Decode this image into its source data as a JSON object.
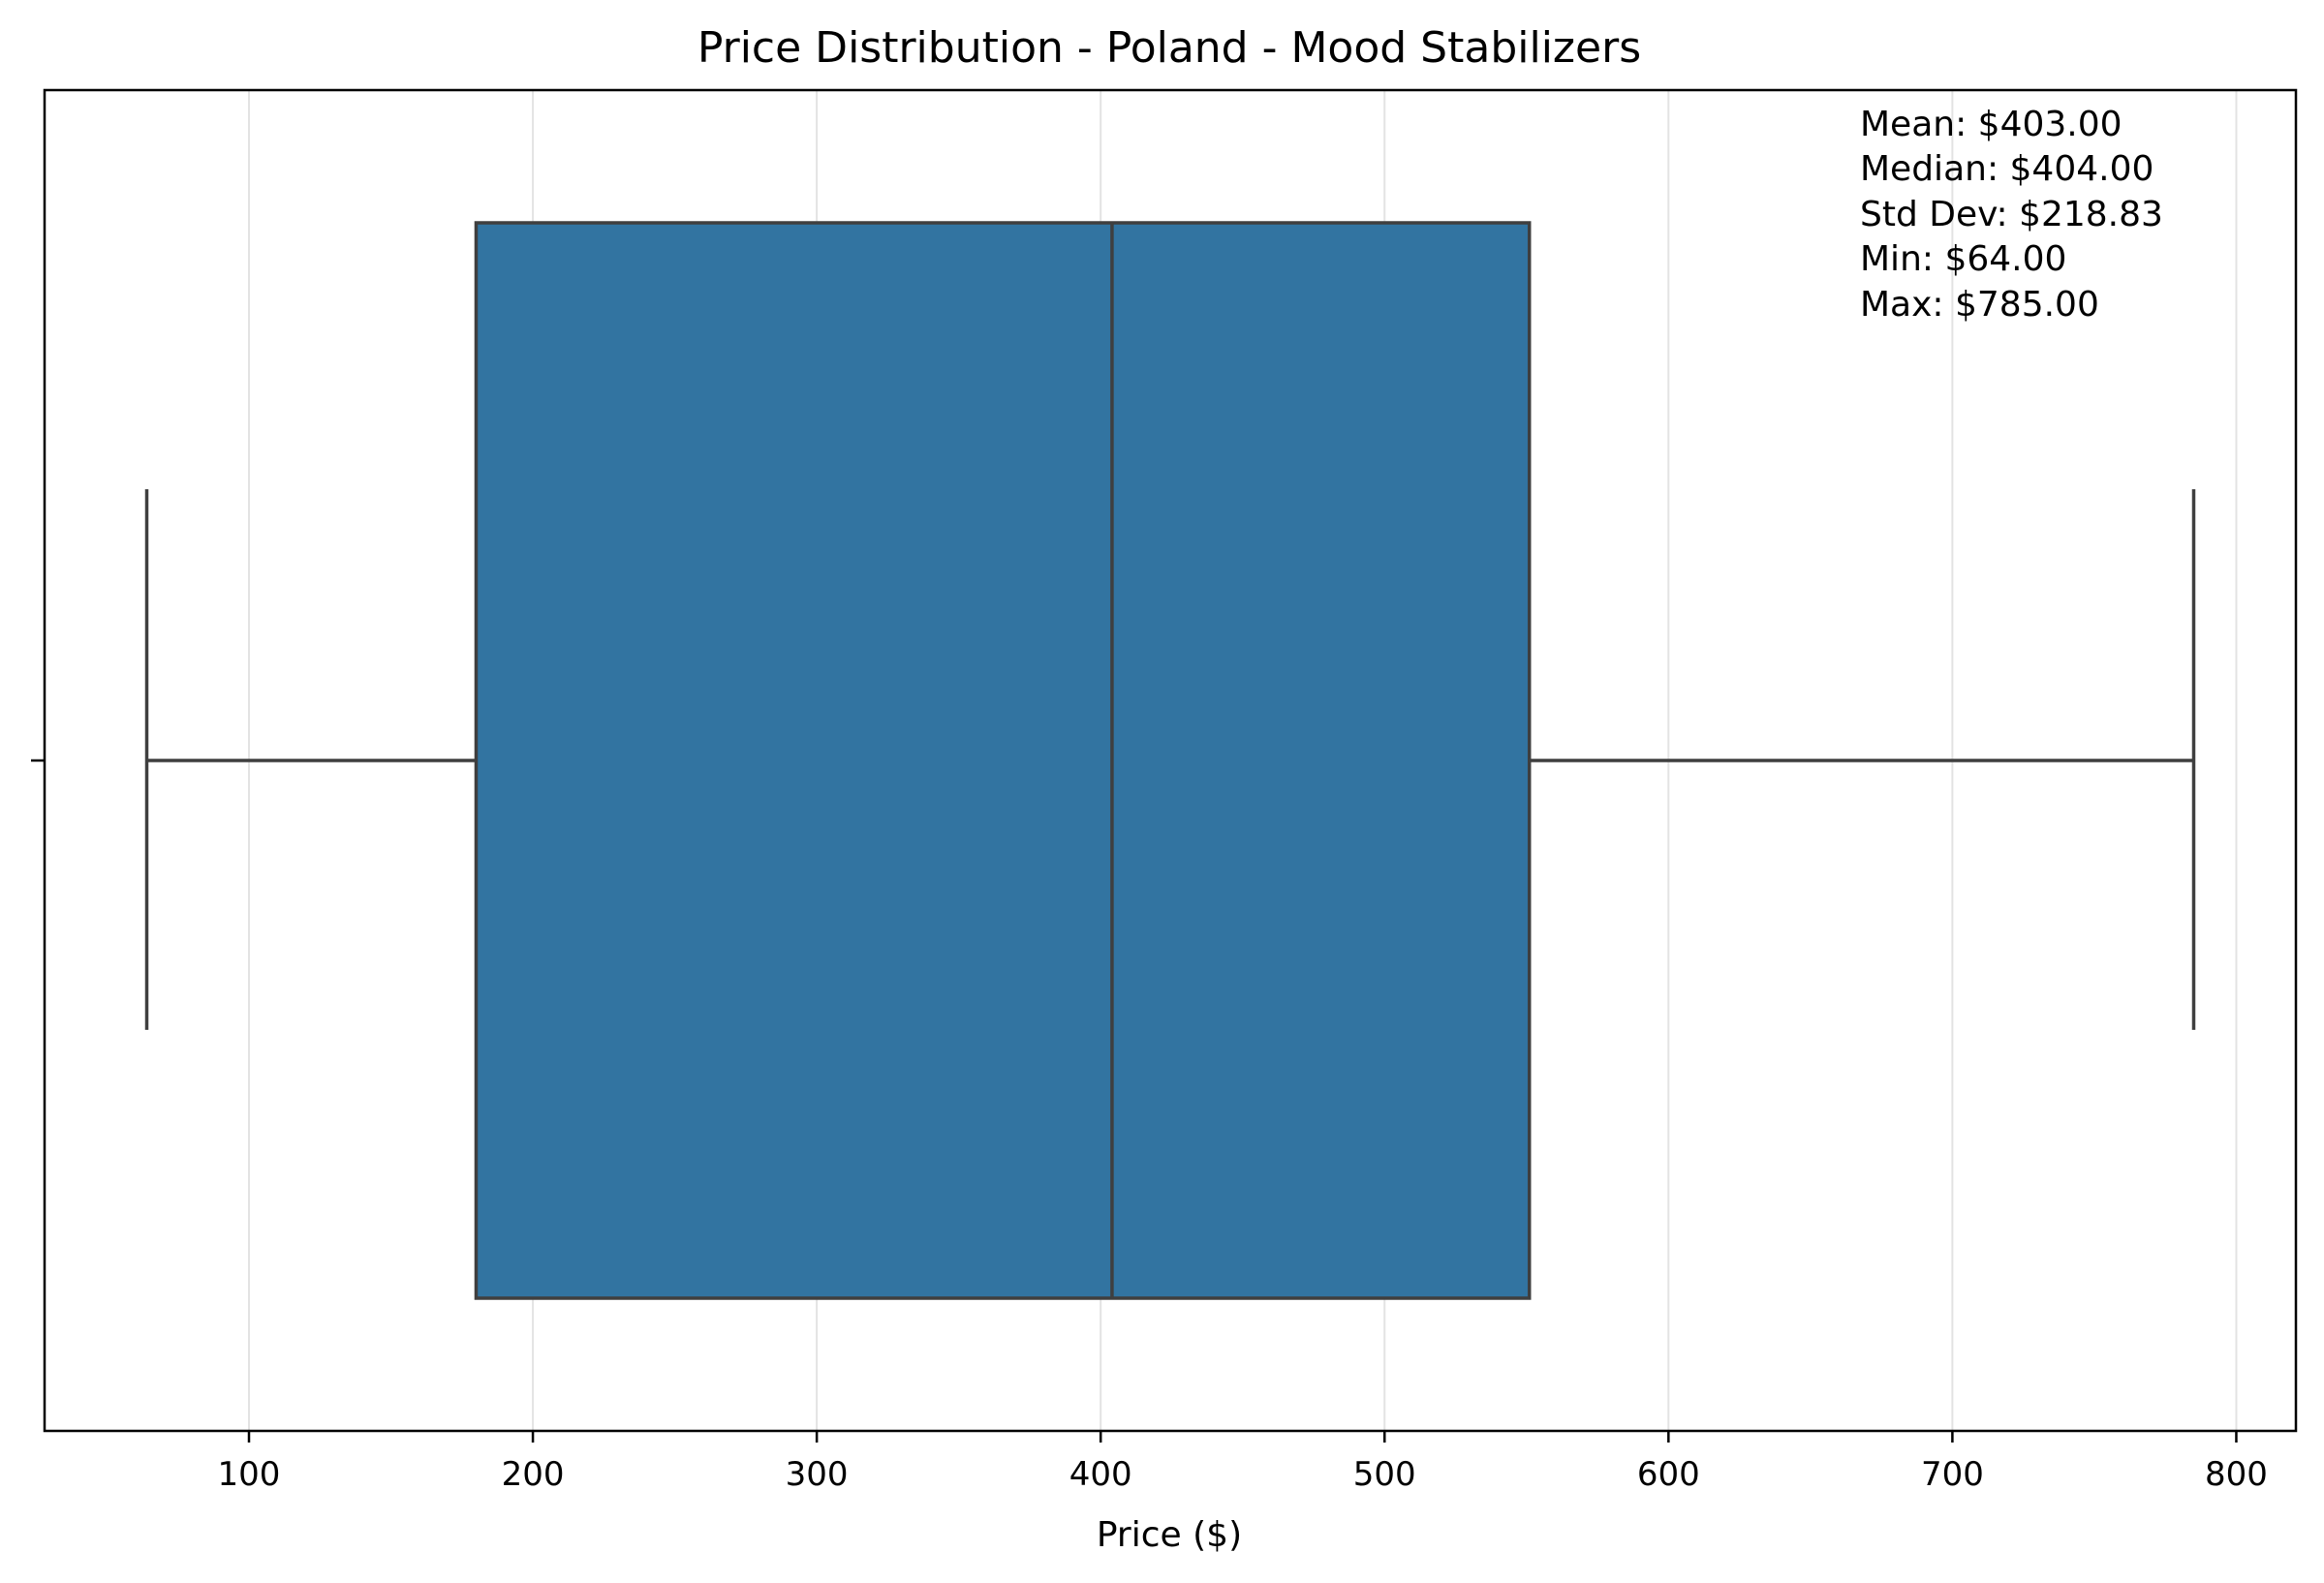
{
  "chart_data": {
    "type": "box",
    "title": "Price Distribution - Poland - Mood Stabilizers",
    "xlabel": "Price ($)",
    "ylabel": "",
    "orientation": "horizontal",
    "xlim": [
      28,
      821
    ],
    "xticks": [
      100,
      200,
      300,
      400,
      500,
      600,
      700,
      800
    ],
    "grid": "vertical-only",
    "box": {
      "whisker_low": 64,
      "q1": 180,
      "median": 404,
      "q3": 551,
      "whisker_high": 785
    },
    "colors": {
      "box_fill": "#3274a1",
      "line": "#3f3f3f",
      "grid": "#e3e3e3",
      "axis": "#000000"
    },
    "stats_box": {
      "placement": "top-right",
      "lines": [
        "Mean: $403.00",
        "Median: $404.00",
        "Std Dev: $218.83",
        "Min: $64.00",
        "Max: $785.00"
      ]
    }
  }
}
